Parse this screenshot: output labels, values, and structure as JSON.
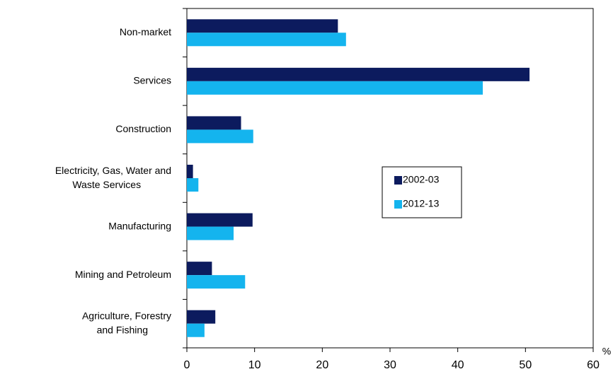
{
  "chart_data": {
    "type": "bar",
    "orientation": "horizontal",
    "categories": [
      "Non-market",
      "Services",
      "Construction",
      "Electricity, Gas, Water and Waste Services",
      "Manufacturing",
      "Mining and Petroleum",
      "Agriculture, Forestry and Fishing"
    ],
    "series": [
      {
        "name": "2002-03",
        "color": "#0c1b5e",
        "values": [
          22.3,
          50.6,
          8.0,
          0.9,
          9.7,
          3.7,
          4.2
        ]
      },
      {
        "name": "2012-13",
        "color": "#14b4ee",
        "values": [
          23.5,
          43.7,
          9.8,
          1.7,
          6.9,
          8.6,
          2.6
        ]
      }
    ],
    "xlabel": "%",
    "xlim": [
      0,
      60
    ],
    "xticks": [
      0,
      10,
      20,
      30,
      40,
      50,
      60
    ],
    "grid": false,
    "legend": "center right"
  }
}
